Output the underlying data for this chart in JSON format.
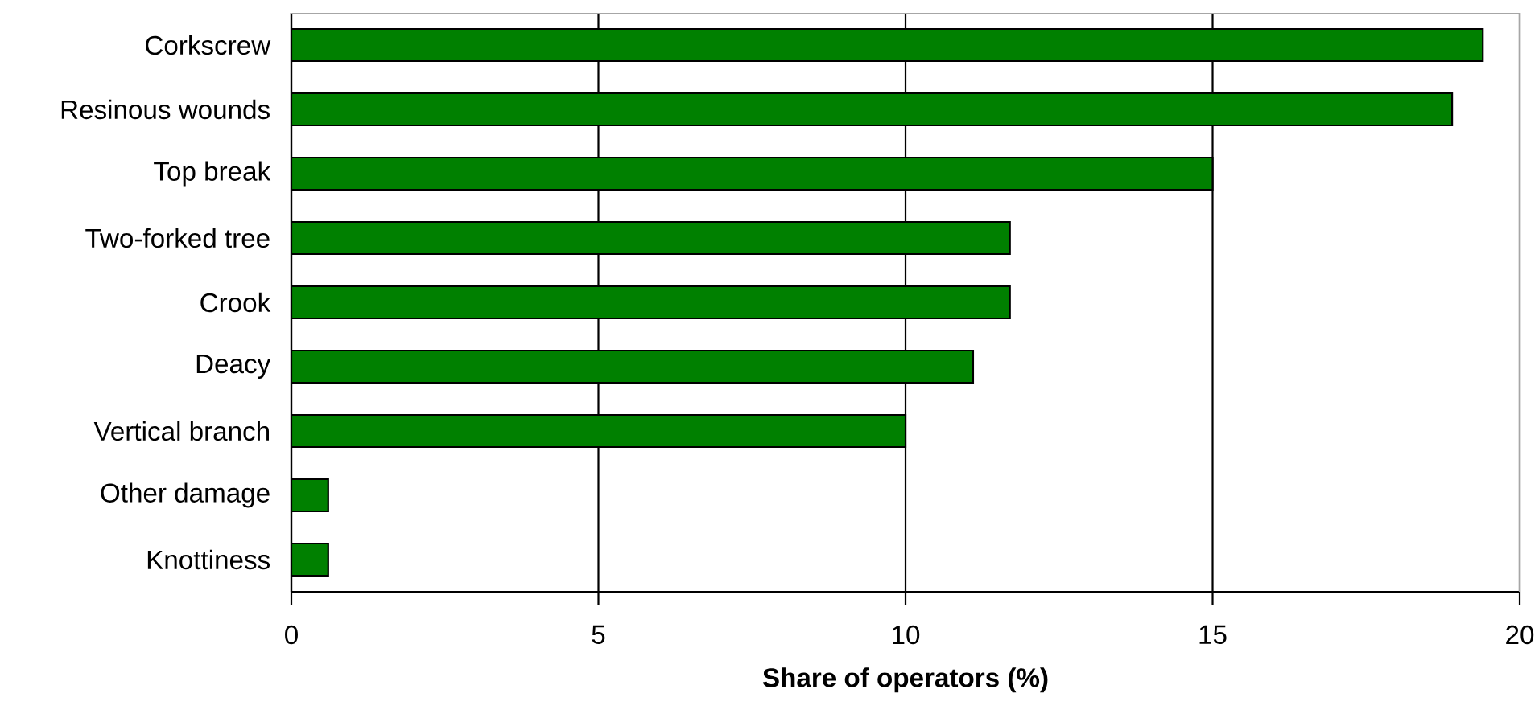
{
  "chart_data": {
    "type": "bar",
    "orientation": "horizontal",
    "xlabel": "Share of operators (%)",
    "categories": [
      "Corkscrew",
      "Resinous wounds",
      "Top break",
      "Two-forked tree",
      "Crook",
      "Deacy",
      "Vertical branch",
      "Other damage",
      "Knottiness"
    ],
    "values": [
      19.4,
      18.9,
      15.0,
      11.7,
      11.7,
      11.1,
      10.0,
      0.6,
      0.6
    ],
    "color": "#008000",
    "xlim": [
      0,
      20
    ],
    "xticks": [
      0,
      5,
      10,
      15,
      20
    ],
    "grid": "x"
  }
}
